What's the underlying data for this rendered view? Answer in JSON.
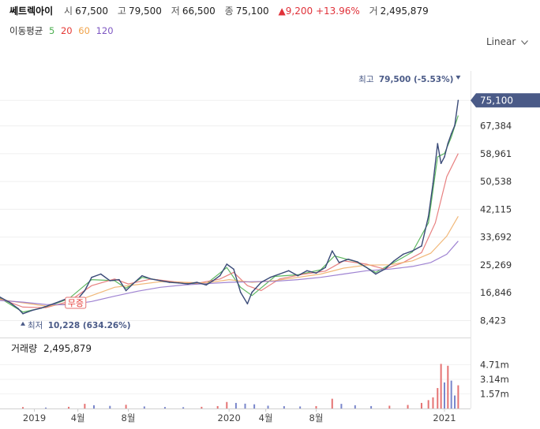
{
  "header": {
    "name": "쎄트렉아이",
    "open_label": "시",
    "open": "67,500",
    "high_label": "고",
    "high": "79,500",
    "low_label": "저",
    "low": "66,500",
    "close_label": "종",
    "close": "75,100",
    "change": "▲9,200",
    "change_pct": "+13.96%",
    "volume_label": "거",
    "volume": "2,495,879"
  },
  "ma_legend": {
    "title": "이동평균",
    "items": [
      {
        "label": "5",
        "color": "#4caf50"
      },
      {
        "label": "20",
        "color": "#e53935"
      },
      {
        "label": "60",
        "color": "#f0a34a"
      },
      {
        "label": "120",
        "color": "#7e57c2"
      }
    ]
  },
  "scale_button": "Linear",
  "chart_data": {
    "type": "line",
    "title": "",
    "y_ticks": [
      "75,100",
      "67,384",
      "58,961",
      "50,538",
      "42,115",
      "33,692",
      "25,269",
      "16,846",
      "8,423"
    ],
    "y_tick_values": [
      75100,
      67384,
      58961,
      50538,
      42115,
      33692,
      25269,
      16846,
      8423
    ],
    "ylim": [
      4000,
      84000
    ],
    "x_ticks": [
      "2019",
      "4월",
      "8월",
      "2020",
      "4월",
      "8월",
      "2021"
    ],
    "x_tick_positions": [
      0.15,
      0.34,
      0.56,
      1.0,
      1.16,
      1.38,
      1.94
    ],
    "x_range": [
      0,
      2.04
    ],
    "series": [
      {
        "kind": "price",
        "color": "#3a4a78",
        "points": [
          [
            0.0,
            15500
          ],
          [
            0.04,
            14000
          ],
          [
            0.08,
            12000
          ],
          [
            0.1,
            10500
          ],
          [
            0.14,
            11500
          ],
          [
            0.18,
            12200
          ],
          [
            0.22,
            13200
          ],
          [
            0.26,
            14200
          ],
          [
            0.3,
            15300
          ],
          [
            0.34,
            15000
          ],
          [
            0.37,
            17500
          ],
          [
            0.4,
            21500
          ],
          [
            0.44,
            22500
          ],
          [
            0.48,
            20500
          ],
          [
            0.52,
            20800
          ],
          [
            0.55,
            17500
          ],
          [
            0.58,
            19500
          ],
          [
            0.62,
            22000
          ],
          [
            0.66,
            21000
          ],
          [
            0.7,
            20500
          ],
          [
            0.74,
            20000
          ],
          [
            0.78,
            19800
          ],
          [
            0.82,
            19500
          ],
          [
            0.86,
            20000
          ],
          [
            0.9,
            19200
          ],
          [
            0.93,
            20500
          ],
          [
            0.96,
            22000
          ],
          [
            0.99,
            25500
          ],
          [
            1.02,
            24000
          ],
          [
            1.05,
            17000
          ],
          [
            1.08,
            13500
          ],
          [
            1.1,
            17000
          ],
          [
            1.14,
            20000
          ],
          [
            1.18,
            21500
          ],
          [
            1.22,
            22500
          ],
          [
            1.26,
            23500
          ],
          [
            1.3,
            22000
          ],
          [
            1.34,
            23500
          ],
          [
            1.38,
            22800
          ],
          [
            1.42,
            24500
          ],
          [
            1.45,
            29500
          ],
          [
            1.48,
            26000
          ],
          [
            1.52,
            27000
          ],
          [
            1.56,
            26200
          ],
          [
            1.6,
            24500
          ],
          [
            1.64,
            22500
          ],
          [
            1.68,
            24000
          ],
          [
            1.72,
            26500
          ],
          [
            1.76,
            28500
          ],
          [
            1.8,
            29500
          ],
          [
            1.84,
            31000
          ],
          [
            1.87,
            40000
          ],
          [
            1.89,
            50000
          ],
          [
            1.91,
            62000
          ],
          [
            1.925,
            56000
          ],
          [
            1.94,
            58000
          ],
          [
            1.955,
            62000
          ],
          [
            1.97,
            65000
          ],
          [
            1.985,
            67500
          ],
          [
            2.0,
            75100
          ]
        ]
      },
      {
        "name": "5",
        "color": "#4caf50",
        "points": [
          [
            0.0,
            15200
          ],
          [
            0.1,
            11000
          ],
          [
            0.2,
            12500
          ],
          [
            0.3,
            15000
          ],
          [
            0.4,
            20800
          ],
          [
            0.5,
            20500
          ],
          [
            0.55,
            18200
          ],
          [
            0.62,
            21500
          ],
          [
            0.7,
            20600
          ],
          [
            0.8,
            19700
          ],
          [
            0.9,
            19500
          ],
          [
            0.99,
            24500
          ],
          [
            1.05,
            18500
          ],
          [
            1.1,
            16000
          ],
          [
            1.2,
            21800
          ],
          [
            1.3,
            22300
          ],
          [
            1.4,
            23800
          ],
          [
            1.46,
            28000
          ],
          [
            1.55,
            26300
          ],
          [
            1.64,
            23000
          ],
          [
            1.72,
            26000
          ],
          [
            1.8,
            29200
          ],
          [
            1.87,
            38000
          ],
          [
            1.91,
            58000
          ],
          [
            1.94,
            59000
          ],
          [
            1.97,
            64000
          ],
          [
            2.0,
            70500
          ]
        ]
      },
      {
        "name": "20",
        "color": "#e57373",
        "points": [
          [
            0.0,
            15000
          ],
          [
            0.1,
            12500
          ],
          [
            0.2,
            12300
          ],
          [
            0.3,
            14200
          ],
          [
            0.4,
            19000
          ],
          [
            0.5,
            21000
          ],
          [
            0.56,
            19500
          ],
          [
            0.66,
            21000
          ],
          [
            0.76,
            20200
          ],
          [
            0.86,
            19700
          ],
          [
            0.96,
            21000
          ],
          [
            1.02,
            23000
          ],
          [
            1.08,
            19000
          ],
          [
            1.14,
            17500
          ],
          [
            1.22,
            21000
          ],
          [
            1.32,
            22400
          ],
          [
            1.42,
            23400
          ],
          [
            1.5,
            26500
          ],
          [
            1.6,
            25500
          ],
          [
            1.68,
            24000
          ],
          [
            1.76,
            26000
          ],
          [
            1.84,
            29000
          ],
          [
            1.9,
            38000
          ],
          [
            1.95,
            52000
          ],
          [
            2.0,
            59000
          ]
        ]
      },
      {
        "name": "60",
        "color": "#f0b06a",
        "points": [
          [
            0.0,
            14800
          ],
          [
            0.1,
            13800
          ],
          [
            0.2,
            12800
          ],
          [
            0.3,
            13500
          ],
          [
            0.4,
            16000
          ],
          [
            0.5,
            18500
          ],
          [
            0.6,
            19300
          ],
          [
            0.7,
            20200
          ],
          [
            0.8,
            20000
          ],
          [
            0.9,
            19800
          ],
          [
            1.0,
            20800
          ],
          [
            1.1,
            20000
          ],
          [
            1.2,
            20500
          ],
          [
            1.3,
            21500
          ],
          [
            1.4,
            22500
          ],
          [
            1.5,
            24300
          ],
          [
            1.6,
            25200
          ],
          [
            1.7,
            25300
          ],
          [
            1.8,
            26500
          ],
          [
            1.88,
            28800
          ],
          [
            1.95,
            34000
          ],
          [
            2.0,
            40000
          ]
        ]
      },
      {
        "name": "120",
        "color": "#9575cd",
        "points": [
          [
            0.0,
            14500
          ],
          [
            0.1,
            14000
          ],
          [
            0.2,
            13300
          ],
          [
            0.3,
            13200
          ],
          [
            0.4,
            14200
          ],
          [
            0.5,
            15800
          ],
          [
            0.6,
            17300
          ],
          [
            0.7,
            18500
          ],
          [
            0.8,
            19200
          ],
          [
            0.9,
            19600
          ],
          [
            1.0,
            20000
          ],
          [
            1.1,
            20200
          ],
          [
            1.2,
            20300
          ],
          [
            1.3,
            20800
          ],
          [
            1.4,
            21500
          ],
          [
            1.5,
            22500
          ],
          [
            1.6,
            23500
          ],
          [
            1.7,
            24000
          ],
          [
            1.8,
            24800
          ],
          [
            1.88,
            26000
          ],
          [
            1.95,
            28500
          ],
          [
            2.0,
            32500
          ]
        ]
      }
    ],
    "annotations": {
      "high": {
        "label": "최고",
        "value": "79,500 (-5.53%)",
        "x": 2.0,
        "y": 79500
      },
      "low": {
        "label": "최저",
        "value": "10,228 (634.26%)",
        "x": 0.1,
        "y": 10228
      },
      "event": {
        "label": "무증",
        "x": 0.33
      }
    },
    "current_price_label": "75,100",
    "volume": {
      "title": "거래량",
      "value": "2,495,879",
      "y_ticks": [
        "4.71m",
        "3.14m",
        "1.57m"
      ],
      "y_tick_values": [
        4710000,
        3140000,
        1570000
      ],
      "ylim": [
        0,
        5600000
      ],
      "bars": [
        [
          0.1,
          150000
        ],
        [
          0.2,
          100000
        ],
        [
          0.3,
          180000
        ],
        [
          0.37,
          500000
        ],
        [
          0.41,
          350000
        ],
        [
          0.48,
          280000
        ],
        [
          0.55,
          400000
        ],
        [
          0.63,
          220000
        ],
        [
          0.72,
          160000
        ],
        [
          0.8,
          140000
        ],
        [
          0.88,
          180000
        ],
        [
          0.95,
          260000
        ],
        [
          0.99,
          700000
        ],
        [
          1.03,
          600000
        ],
        [
          1.07,
          520000
        ],
        [
          1.11,
          450000
        ],
        [
          1.17,
          300000
        ],
        [
          1.24,
          250000
        ],
        [
          1.31,
          220000
        ],
        [
          1.38,
          260000
        ],
        [
          1.45,
          1050000
        ],
        [
          1.49,
          500000
        ],
        [
          1.55,
          350000
        ],
        [
          1.62,
          260000
        ],
        [
          1.7,
          300000
        ],
        [
          1.78,
          380000
        ],
        [
          1.84,
          600000
        ],
        [
          1.87,
          900000
        ],
        [
          1.89,
          1200000
        ],
        [
          1.91,
          2200000
        ],
        [
          1.925,
          4800000
        ],
        [
          1.94,
          2800000
        ],
        [
          1.955,
          4600000
        ],
        [
          1.97,
          3000000
        ],
        [
          1.985,
          1400000
        ],
        [
          2.0,
          2495879
        ]
      ]
    }
  }
}
